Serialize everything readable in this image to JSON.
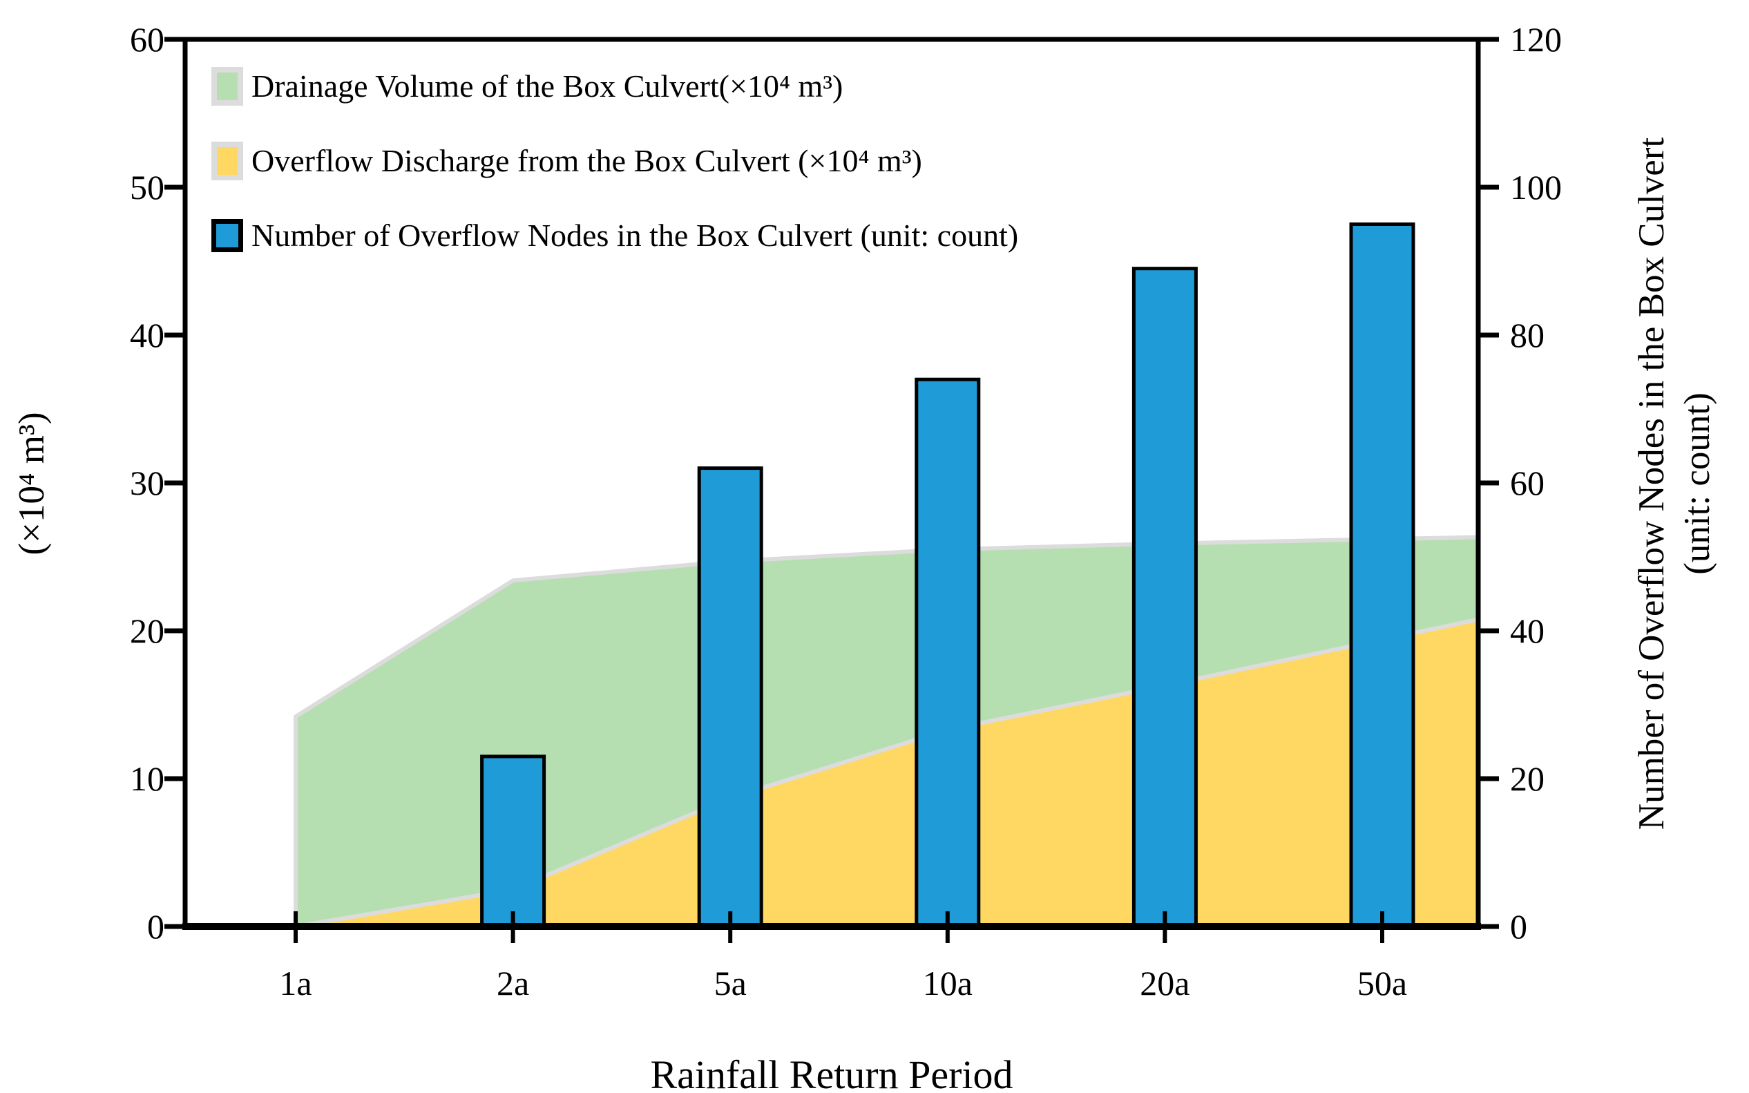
{
  "chart_data": {
    "type": "combo",
    "title": "",
    "categories": [
      "1a",
      "2a",
      "5a",
      "10a",
      "20a",
      "50a"
    ],
    "series": [
      {
        "name": "Drainage Volume of the Box Culvert(×10⁴ m³)",
        "type": "area",
        "axis": "left",
        "color": "#b5dfb0",
        "edge_color": "#dcdcdc",
        "values": [
          14.2,
          23.4,
          24.7,
          25.5,
          25.9,
          26.2
        ]
      },
      {
        "name": "Overflow Discharge from the Box Culvert (×10⁴ m³)",
        "type": "area",
        "axis": "left",
        "color": "#ffd863",
        "edge_color": "#dcdcdc",
        "values": [
          0,
          2.5,
          8.7,
          13.3,
          16.3,
          19.4
        ]
      },
      {
        "name": "Number of Overflow Nodes in the Box Culvert (unit: count)",
        "type": "bar",
        "axis": "right",
        "color": "#1f9cd8",
        "edge_color": "#000000",
        "values": [
          0,
          23,
          62,
          74,
          89,
          95
        ]
      }
    ],
    "xlabel": "Rainfall Return Period",
    "left_axis": {
      "label": "(×10⁴ m³)",
      "min": 0,
      "max": 60,
      "step": 10,
      "ticks": [
        0,
        10,
        20,
        30,
        40,
        50,
        60
      ]
    },
    "right_axis": {
      "label_line1": "Number of Overflow Nodes in the Box Culvert",
      "label_line2": "(unit: count)",
      "min": 0,
      "max": 120,
      "step": 20,
      "ticks": [
        0,
        20,
        40,
        60,
        80,
        100,
        120
      ]
    },
    "legend_position": "top-left-inside",
    "grid": false
  }
}
